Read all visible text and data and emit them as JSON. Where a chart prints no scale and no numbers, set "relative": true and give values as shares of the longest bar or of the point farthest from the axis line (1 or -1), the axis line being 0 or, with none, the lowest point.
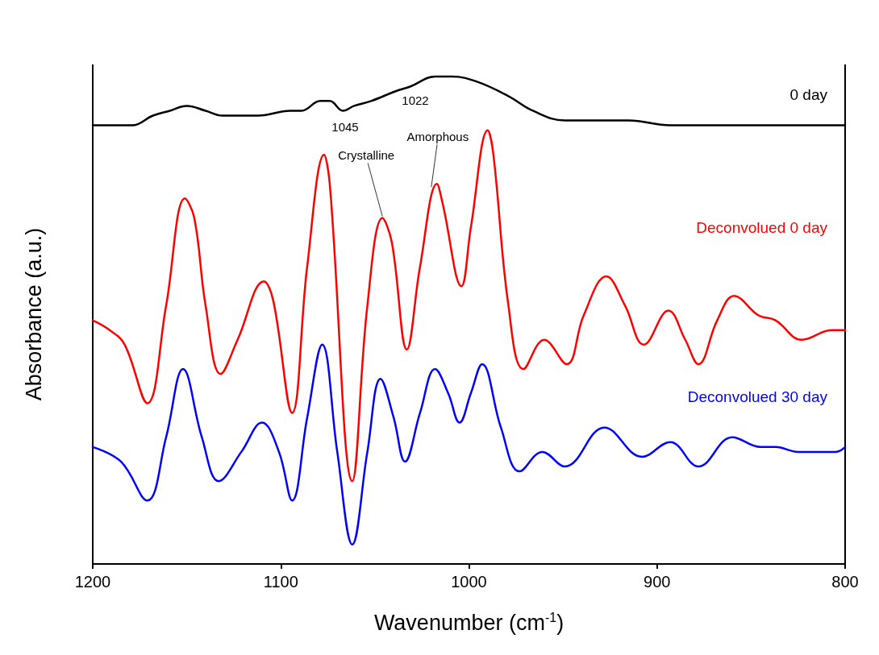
{
  "chart_data": {
    "type": "line",
    "relative": true,
    "xlabel": "Wavenumber (cm$^{-1}$)",
    "ylabel": "Absorbance (a.u.)",
    "xlim": [
      1200,
      800
    ],
    "xticks": [
      1200,
      1100,
      1000,
      900,
      800
    ],
    "grid": false,
    "marker": "none",
    "line_style": "solid",
    "annotations": [
      "1045",
      {
        "text": "Crystalline",
        "x": 1046,
        "y": 0.71
      },
      "1022",
      {
        "text": "Amorphous",
        "x": 1020,
        "y": 0.77
      }
    ],
    "series": [
      {
        "name": "0 day",
        "color": "#000000",
        "x": [
          1200,
          1189,
          1179,
          1168,
          1159,
          1150,
          1140,
          1131,
          1112,
          1095,
          1089,
          1079,
          1074,
          1067,
          1061,
          1052,
          1039,
          1031,
          1018,
          1009,
          996,
          979,
          966,
          949,
          936,
          928,
          915,
          893,
          876,
          859,
          833,
          800
        ],
        "values": [
          0.9,
          0.9,
          0.9,
          0.92,
          0.93,
          0.94,
          0.93,
          0.92,
          0.92,
          0.93,
          0.93,
          0.95,
          0.95,
          0.93,
          0.94,
          0.95,
          0.97,
          0.98,
          1,
          1,
          0.99,
          0.96,
          0.93,
          0.91,
          0.91,
          0.91,
          0.91,
          0.9,
          0.9,
          0.9,
          0.9,
          0.9
        ]
      },
      {
        "name": "Deconvolued 0 day",
        "color": "#ff0000",
        "x": [
          1200,
          1191,
          1183,
          1171,
          1161,
          1151,
          1146,
          1140,
          1132,
          1123,
          1109,
          1104,
          1094,
          1086,
          1077,
          1074,
          1062,
          1054,
          1046,
          1041,
          1033,
          1026,
          1017,
          1014,
          1004,
          999,
          990,
          987,
          979,
          971,
          960,
          948,
          939,
          927,
          917,
          907,
          894,
          885,
          878,
          868,
          859,
          846,
          837,
          823,
          807,
          800
        ],
        "values": [
          0.5,
          0.48,
          0.45,
          0.33,
          0.53,
          0.75,
          0.71,
          0.53,
          0.39,
          0.46,
          0.58,
          0.54,
          0.31,
          0.61,
          0.84,
          0.78,
          0.17,
          0.53,
          0.71,
          0.66,
          0.44,
          0.61,
          0.78,
          0.74,
          0.57,
          0.69,
          0.89,
          0.84,
          0.53,
          0.4,
          0.46,
          0.41,
          0.51,
          0.59,
          0.53,
          0.45,
          0.52,
          0.46,
          0.41,
          0.5,
          0.55,
          0.51,
          0.5,
          0.46,
          0.48,
          0.48
        ]
      },
      {
        "name": "Deconvolued 30 day",
        "color": "#0000ff",
        "x": [
          1200,
          1185,
          1171,
          1161,
          1152,
          1142,
          1133,
          1121,
          1110,
          1101,
          1094,
          1086,
          1078,
          1070,
          1062,
          1054,
          1047,
          1040,
          1034,
          1026,
          1018,
          1011,
          1005,
          999,
          993,
          983,
          973,
          961,
          949,
          928,
          908,
          893,
          878,
          860,
          845,
          837,
          825,
          805,
          800
        ],
        "values": [
          0.24,
          0.21,
          0.13,
          0.26,
          0.4,
          0.26,
          0.17,
          0.23,
          0.29,
          0.23,
          0.13,
          0.3,
          0.45,
          0.23,
          0.04,
          0.23,
          0.38,
          0.3,
          0.21,
          0.31,
          0.4,
          0.35,
          0.29,
          0.35,
          0.41,
          0.28,
          0.19,
          0.23,
          0.2,
          0.28,
          0.22,
          0.25,
          0.2,
          0.26,
          0.24,
          0.24,
          0.23,
          0.23,
          0.24
        ]
      }
    ]
  }
}
